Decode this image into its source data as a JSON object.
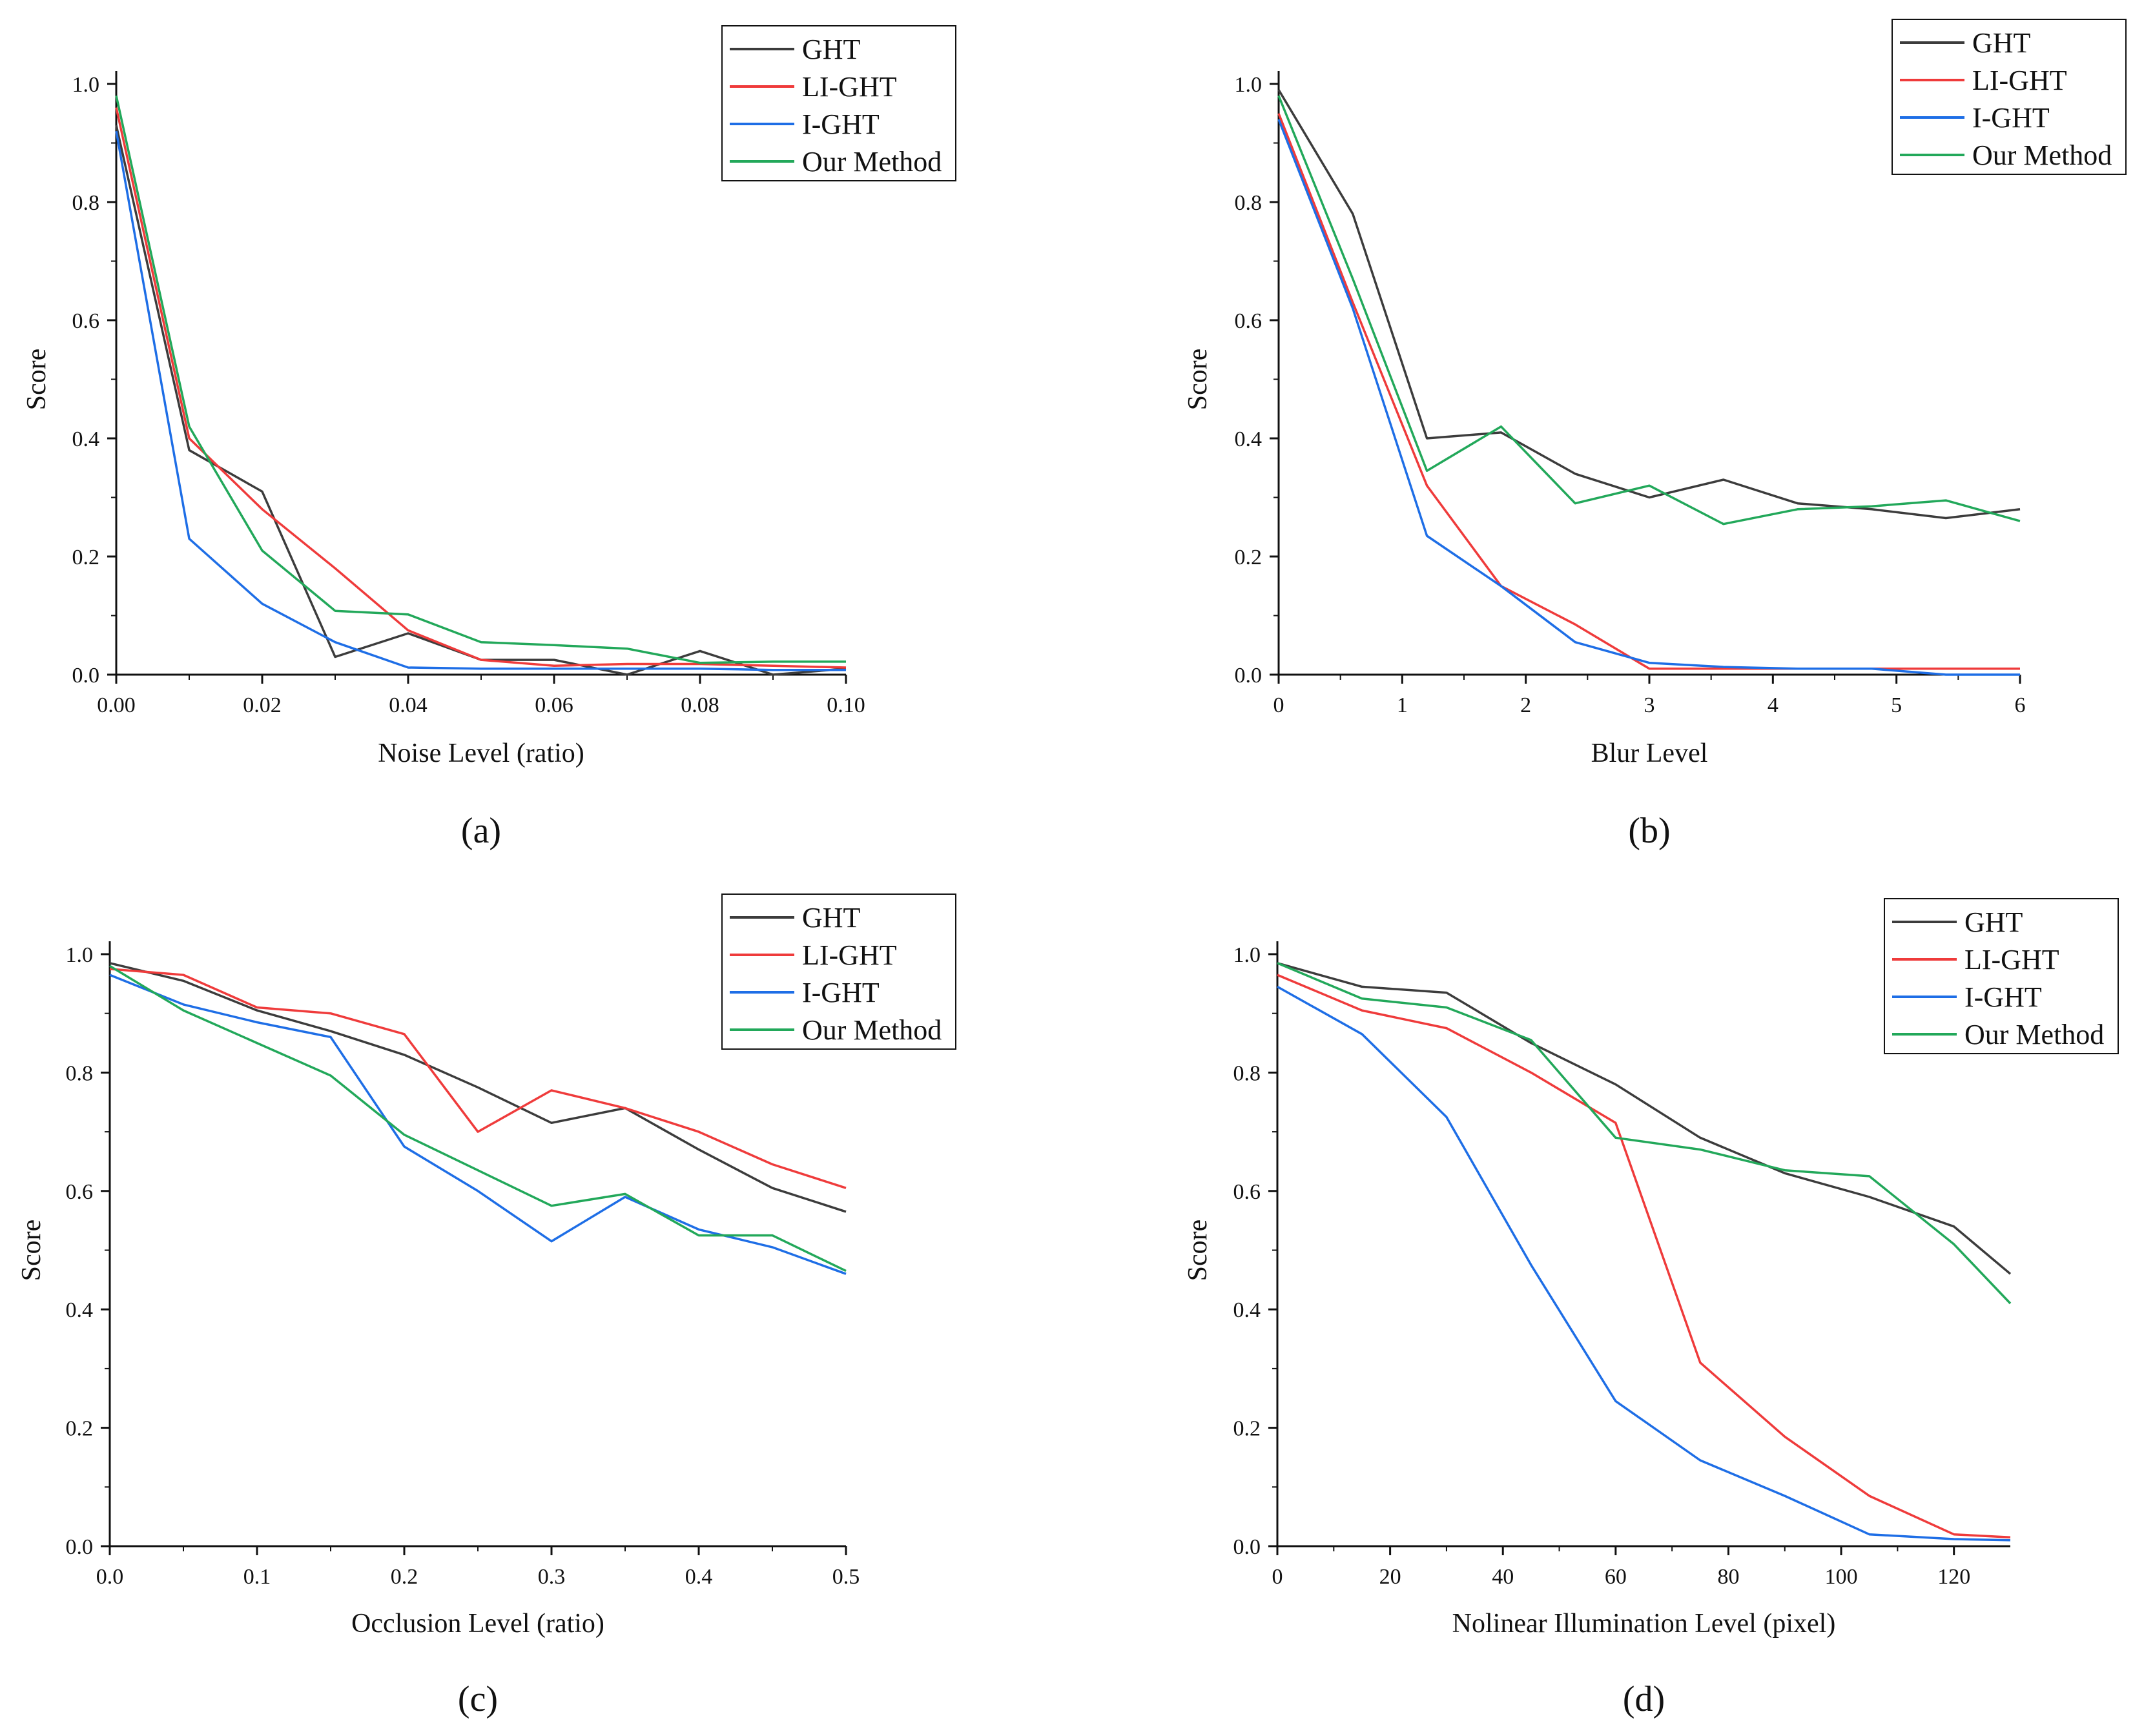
{
  "colors": {
    "GHT": "#3c3c3c",
    "LI-GHT": "#ef3b3b",
    "I-GHT": "#1e6ee6",
    "Our Method": "#22a85a",
    "axis": "#111111"
  },
  "chart_data": [
    {
      "type": "line",
      "caption": "(a)",
      "xlabel": "Noise Level (ratio)",
      "ylabel": "Score",
      "xlim": [
        0,
        0.1
      ],
      "ylim": [
        0,
        1
      ],
      "xticks": [
        0,
        0.02,
        0.04,
        0.06,
        0.08,
        0.1
      ],
      "xtick_labels": [
        "0.00",
        "0.02",
        "0.04",
        "0.06",
        "0.08",
        "0.10"
      ],
      "yticks": [
        0,
        0.2,
        0.4,
        0.6,
        0.8,
        1.0
      ],
      "ytick_labels": [
        "0.0",
        "0.2",
        "0.4",
        "0.6",
        "0.8",
        "1.0"
      ],
      "legend_position": "top-right",
      "x": [
        0,
        0.01,
        0.02,
        0.03,
        0.04,
        0.05,
        0.06,
        0.07,
        0.08,
        0.09,
        0.1
      ],
      "series": [
        {
          "name": "GHT",
          "values": [
            0.93,
            0.38,
            0.31,
            0.03,
            0.07,
            0.025,
            0.025,
            0.0,
            0.04,
            0.0,
            0.01
          ]
        },
        {
          "name": "LI-GHT",
          "values": [
            0.96,
            0.4,
            0.28,
            0.18,
            0.075,
            0.025,
            0.015,
            0.018,
            0.018,
            0.015,
            0.012
          ]
        },
        {
          "name": "I-GHT",
          "values": [
            0.92,
            0.23,
            0.12,
            0.055,
            0.012,
            0.01,
            0.01,
            0.01,
            0.01,
            0.008,
            0.008
          ]
        },
        {
          "name": "Our Method",
          "values": [
            0.98,
            0.42,
            0.21,
            0.108,
            0.102,
            0.055,
            0.05,
            0.044,
            0.02,
            0.022,
            0.022
          ]
        }
      ]
    },
    {
      "type": "line",
      "caption": "(b)",
      "xlabel": "Blur Level",
      "ylabel": "Score",
      "xlim": [
        0,
        6
      ],
      "ylim": [
        0,
        1
      ],
      "xticks": [
        0,
        1,
        2,
        3,
        4,
        5,
        6
      ],
      "xtick_labels": [
        "0",
        "1",
        "2",
        "3",
        "4",
        "5",
        "6"
      ],
      "yticks": [
        0,
        0.2,
        0.4,
        0.6,
        0.8,
        1.0
      ],
      "ytick_labels": [
        "0.0",
        "0.2",
        "0.4",
        "0.6",
        "0.8",
        "1.0"
      ],
      "legend_position": "top-right",
      "x": [
        0,
        0.6,
        1.2,
        1.8,
        2.4,
        3.0,
        3.6,
        4.2,
        4.8,
        5.4,
        6.0
      ],
      "series": [
        {
          "name": "GHT",
          "values": [
            0.99,
            0.78,
            0.4,
            0.41,
            0.34,
            0.3,
            0.33,
            0.29,
            0.28,
            0.265,
            0.28
          ]
        },
        {
          "name": "LI-GHT",
          "values": [
            0.95,
            0.63,
            0.32,
            0.15,
            0.085,
            0.01,
            0.01,
            0.01,
            0.01,
            0.01,
            0.01
          ]
        },
        {
          "name": "I-GHT",
          "values": [
            0.94,
            0.62,
            0.235,
            0.15,
            0.055,
            0.02,
            0.013,
            0.01,
            0.01,
            0.0,
            0.0
          ]
        },
        {
          "name": "Our Method",
          "values": [
            0.98,
            0.67,
            0.345,
            0.42,
            0.29,
            0.32,
            0.255,
            0.28,
            0.285,
            0.295,
            0.26
          ]
        }
      ]
    },
    {
      "type": "line",
      "caption": "(c)",
      "xlabel": "Occlusion Level (ratio)",
      "ylabel": "Score",
      "xlim": [
        0,
        0.5
      ],
      "ylim": [
        0,
        1
      ],
      "xticks": [
        0,
        0.1,
        0.2,
        0.3,
        0.4,
        0.5
      ],
      "xtick_labels": [
        "0.0",
        "0.1",
        "0.2",
        "0.3",
        "0.4",
        "0.5"
      ],
      "yticks": [
        0,
        0.2,
        0.4,
        0.6,
        0.8,
        1.0
      ],
      "ytick_labels": [
        "0.0",
        "0.2",
        "0.4",
        "0.6",
        "0.8",
        "1.0"
      ],
      "legend_position": "top-right",
      "x": [
        0,
        0.05,
        0.1,
        0.15,
        0.2,
        0.25,
        0.3,
        0.35,
        0.4,
        0.45,
        0.5
      ],
      "series": [
        {
          "name": "GHT",
          "values": [
            0.985,
            0.955,
            0.905,
            0.87,
            0.83,
            0.775,
            0.715,
            0.74,
            0.67,
            0.605,
            0.565
          ]
        },
        {
          "name": "LI-GHT",
          "values": [
            0.975,
            0.965,
            0.91,
            0.9,
            0.865,
            0.7,
            0.77,
            0.74,
            0.7,
            0.645,
            0.605
          ]
        },
        {
          "name": "I-GHT",
          "values": [
            0.965,
            0.915,
            0.885,
            0.86,
            0.675,
            0.6,
            0.515,
            0.59,
            0.535,
            0.505,
            0.46
          ]
        },
        {
          "name": "Our Method",
          "values": [
            0.98,
            0.905,
            0.85,
            0.795,
            0.695,
            0.635,
            0.575,
            0.595,
            0.525,
            0.525,
            0.465
          ]
        }
      ]
    },
    {
      "type": "line",
      "caption": "(d)",
      "xlabel": "Nolinear Illumination Level (pixel)",
      "ylabel": "Score",
      "xlim": [
        0,
        130
      ],
      "ylim": [
        0,
        1
      ],
      "xticks": [
        0,
        20,
        40,
        60,
        80,
        100,
        120
      ],
      "xtick_labels": [
        "0",
        "20",
        "40",
        "60",
        "80",
        "100",
        "120"
      ],
      "yticks": [
        0,
        0.2,
        0.4,
        0.6,
        0.8,
        1.0
      ],
      "ytick_labels": [
        "0.0",
        "0.2",
        "0.4",
        "0.6",
        "0.8",
        "1.0"
      ],
      "legend_position": "top-right",
      "x": [
        0,
        15,
        30,
        45,
        60,
        75,
        90,
        105,
        120,
        130
      ],
      "series": [
        {
          "name": "GHT",
          "values": [
            0.985,
            0.945,
            0.935,
            0.85,
            0.78,
            0.69,
            0.63,
            0.59,
            0.54,
            0.46
          ]
        },
        {
          "name": "LI-GHT",
          "values": [
            0.965,
            0.905,
            0.875,
            0.8,
            0.715,
            0.31,
            0.185,
            0.085,
            0.02,
            0.015
          ]
        },
        {
          "name": "I-GHT",
          "values": [
            0.945,
            0.865,
            0.725,
            0.475,
            0.245,
            0.145,
            0.085,
            0.02,
            0.012,
            0.01
          ]
        },
        {
          "name": "Our Method",
          "values": [
            0.985,
            0.925,
            0.91,
            0.855,
            0.69,
            0.67,
            0.635,
            0.625,
            0.51,
            0.41
          ]
        }
      ]
    }
  ]
}
